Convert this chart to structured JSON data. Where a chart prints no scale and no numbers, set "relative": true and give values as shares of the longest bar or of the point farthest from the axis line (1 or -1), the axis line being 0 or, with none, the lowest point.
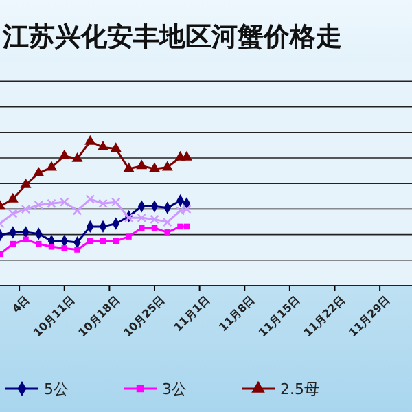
{
  "chart_data": {
    "type": "line",
    "title": "江苏兴化安丰地区河蟹价格走",
    "relative": true,
    "grid": "y",
    "legend": "bottom",
    "x": [
      "--10-01",
      "--10-03",
      "--10-05",
      "--10-07",
      "--10-09",
      "--10-11",
      "--10-13",
      "--10-15",
      "--10-17",
      "--10-19",
      "--10-21",
      "--10-23",
      "--10-25",
      "--10-27",
      "--10-29",
      "--10-30"
    ],
    "xlim": [
      "--10-01",
      "--12-04"
    ],
    "xticks": [
      {
        "value": "--10-04",
        "label": "4日"
      },
      {
        "value": "--10-11",
        "label": "10月11日"
      },
      {
        "value": "--10-18",
        "label": "10月18日"
      },
      {
        "value": "--10-25",
        "label": "10月25日"
      },
      {
        "value": "--11-01",
        "label": "11月1日"
      },
      {
        "value": "--11-08",
        "label": "11月8日"
      },
      {
        "value": "--11-15",
        "label": "11月15日"
      },
      {
        "value": "--11-22",
        "label": "11月22日"
      },
      {
        "value": "--11-29",
        "label": "11月29日"
      }
    ],
    "series": [
      {
        "name": "5公",
        "color": "#000080",
        "marker": "diamond",
        "values": [
          0.35,
          0.37,
          0.37,
          0.36,
          0.31,
          0.31,
          0.3,
          0.41,
          0.41,
          0.43,
          0.48,
          0.55,
          0.55,
          0.54,
          0.59,
          0.57
        ]
      },
      {
        "name": "3公",
        "color": "#ff00ff",
        "marker": "square",
        "values": [
          0.22,
          0.29,
          0.32,
          0.29,
          0.27,
          0.26,
          0.25,
          0.31,
          0.31,
          0.31,
          0.34,
          0.4,
          0.4,
          0.37,
          0.41,
          0.41
        ]
      },
      {
        "name": "2.5母",
        "color": "#800000",
        "marker": "triangle",
        "values": [
          0.55,
          0.6,
          0.7,
          0.78,
          0.82,
          0.9,
          0.88,
          1.0,
          0.96,
          0.95,
          0.81,
          0.83,
          0.81,
          0.82,
          0.89,
          0.89
        ]
      },
      {
        "color": "#cc99ff",
        "marker": "cross",
        "values": [
          0.43,
          0.5,
          0.53,
          0.56,
          0.57,
          0.58,
          0.52,
          0.6,
          0.57,
          0.58,
          0.47,
          0.47,
          0.46,
          0.44,
          0.52,
          0.53
        ]
      }
    ]
  }
}
